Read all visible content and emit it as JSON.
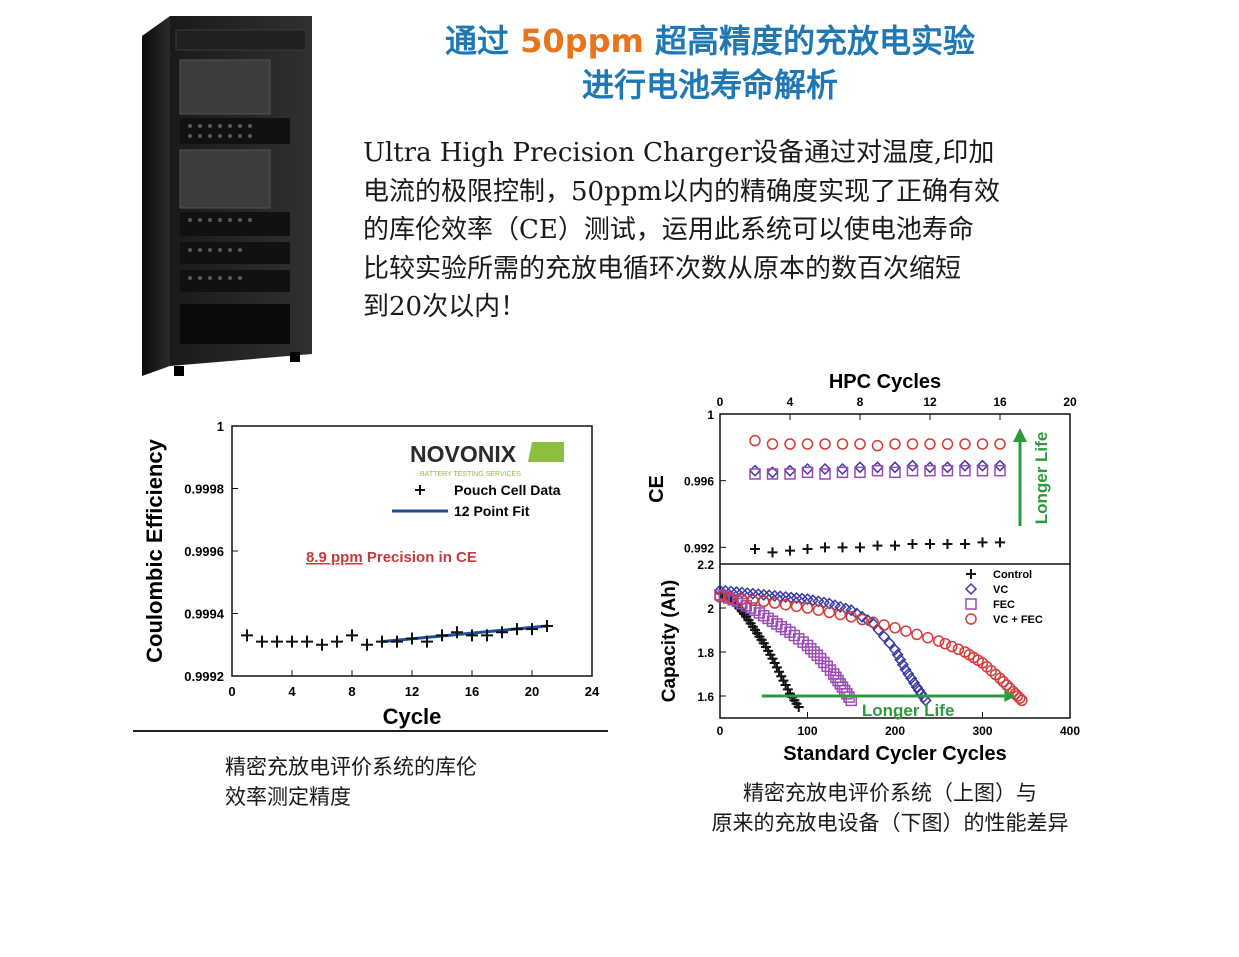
{
  "heading": {
    "line1_prefix": "通过 ",
    "line1_highlight": "50ppm",
    "line1_suffix": " 超高精度的充放电实验",
    "line2": "进行电池寿命解析"
  },
  "intro": {
    "lines": [
      "Ultra High Precision Charger设备通过对温度,印加",
      "电流的极限控制，50ppm以内的精确度实现了正确有效",
      "的库伦效率（CE）测试，运用此系统可以使电池寿命",
      "比较实验所需的充放电循环次数从原本的数百次缩短",
      "到20次以内！"
    ]
  },
  "captions": {
    "left": [
      "精密充放电评价系统的库伦",
      "效率测定精度"
    ],
    "right": [
      "精密充放电评价系统（上图）与",
      "原来的充放电设备（下图）的性能差异"
    ]
  },
  "colors": {
    "title_blue": "#1f78b4",
    "highlight_orange": "#e8741c",
    "fit_line": "#1f4e9c",
    "fec_purple": "#9b4bb5",
    "vc_blue": "#3a3aa8",
    "vcfec_red": "#d63a3a",
    "arrow_green": "#2e9a3e"
  },
  "chart_data": [
    {
      "type": "scatter",
      "xlabel": "Cycle",
      "ylabel": "Coulombic Efficiency",
      "xlim": [
        0,
        24
      ],
      "ylim": [
        0.9992,
        1
      ],
      "xticks": [
        "0",
        "4",
        "8",
        "12",
        "16",
        "20",
        "24"
      ],
      "yticks": [
        "0.9992",
        "0.9994",
        "0.9996",
        "0.9998",
        "1"
      ],
      "logo": "NOVONIX",
      "logo_sub": "BATTERY TESTING SERVICES",
      "annotation": {
        "value": "8.9 ppm",
        "text": " Precision in CE"
      },
      "legend": [
        {
          "name": "Pouch Cell Data",
          "marker": "+"
        },
        {
          "name": "12 Point Fit",
          "marker": "line"
        }
      ],
      "series": [
        {
          "name": "Pouch Cell Data",
          "x": [
            1,
            2,
            3,
            4,
            5,
            6,
            7,
            8,
            9,
            10,
            11,
            12,
            13,
            14,
            15,
            16,
            17,
            18,
            19,
            20,
            21
          ],
          "y": [
            0.99933,
            0.99931,
            0.99931,
            0.99931,
            0.99931,
            0.9993,
            0.99931,
            0.99933,
            0.9993,
            0.99931,
            0.99931,
            0.99932,
            0.99931,
            0.99933,
            0.99934,
            0.99933,
            0.99933,
            0.99934,
            0.99935,
            0.99935,
            0.99936
          ]
        },
        {
          "name": "12 Point Fit",
          "x": [
            10,
            21
          ],
          "y": [
            0.99931,
            0.99936
          ]
        }
      ]
    },
    {
      "type": "scatter",
      "title": "HPC Cycles",
      "xlabel": "",
      "ylabel": "CE",
      "xlim": [
        0,
        20
      ],
      "ylim": [
        0.991,
        1
      ],
      "xticks": [
        "0",
        "4",
        "8",
        "12",
        "16",
        "20"
      ],
      "yticks": [
        "0.992",
        "0.996",
        "1"
      ],
      "annotation": "Longer Life",
      "series": [
        {
          "name": "Control",
          "marker": "+",
          "x": [
            2,
            3,
            4,
            5,
            6,
            7,
            8,
            9,
            10,
            11,
            12,
            13,
            14,
            15,
            16
          ],
          "y": [
            0.9919,
            0.9917,
            0.9918,
            0.9919,
            0.992,
            0.992,
            0.992,
            0.9921,
            0.9921,
            0.9922,
            0.9922,
            0.9922,
            0.9922,
            0.9923,
            0.9923
          ]
        },
        {
          "name": "VC",
          "marker": "diamond",
          "x": [
            2,
            3,
            4,
            5,
            6,
            7,
            8,
            9,
            10,
            11,
            12,
            13,
            14,
            15,
            16
          ],
          "y": [
            0.9966,
            0.9965,
            0.9966,
            0.9967,
            0.9967,
            0.9967,
            0.9968,
            0.9968,
            0.9968,
            0.9969,
            0.9968,
            0.9968,
            0.9969,
            0.9969,
            0.9969
          ]
        },
        {
          "name": "FEC",
          "marker": "square",
          "x": [
            2,
            3,
            4,
            5,
            6,
            7,
            8,
            9,
            10,
            11,
            12,
            13,
            14,
            15,
            16
          ],
          "y": [
            0.9964,
            0.9964,
            0.9964,
            0.9965,
            0.9964,
            0.9965,
            0.9965,
            0.9966,
            0.9965,
            0.9966,
            0.9966,
            0.9966,
            0.9966,
            0.9966,
            0.9966
          ]
        },
        {
          "name": "VC + FEC",
          "marker": "circle",
          "x": [
            2,
            3,
            4,
            5,
            6,
            7,
            8,
            9,
            10,
            11,
            12,
            13,
            14,
            15,
            16
          ],
          "y": [
            0.9984,
            0.9982,
            0.9982,
            0.9982,
            0.9982,
            0.9982,
            0.9982,
            0.9981,
            0.9982,
            0.9982,
            0.9982,
            0.9982,
            0.9982,
            0.9982,
            0.9982
          ]
        }
      ]
    },
    {
      "type": "scatter",
      "xlabel": "Standard Cycler Cycles",
      "ylabel": "Capacity (Ah)",
      "xlim": [
        0,
        400
      ],
      "ylim": [
        1.5,
        2.2
      ],
      "xticks": [
        "0",
        "100",
        "200",
        "300",
        "400"
      ],
      "yticks": [
        "1.6",
        "1.8",
        "2",
        "2.2"
      ],
      "annotation": "Longer Life",
      "legend": [
        {
          "name": "Control",
          "marker": "+"
        },
        {
          "name": "VC",
          "marker": "diamond"
        },
        {
          "name": "FEC",
          "marker": "square"
        },
        {
          "name": "VC + FEC",
          "marker": "circle"
        }
      ],
      "series": [
        {
          "name": "Control",
          "x": [
            0,
            10,
            20,
            30,
            40,
            50,
            60,
            70,
            80,
            90
          ],
          "y": [
            2.07,
            2.05,
            2.01,
            1.96,
            1.9,
            1.84,
            1.77,
            1.69,
            1.61,
            1.55
          ]
        },
        {
          "name": "VC",
          "x": [
            0,
            25,
            50,
            75,
            100,
            125,
            150,
            175,
            200,
            212,
            225,
            235
          ],
          "y": [
            2.08,
            2.07,
            2.06,
            2.05,
            2.04,
            2.02,
            1.99,
            1.93,
            1.81,
            1.72,
            1.64,
            1.58
          ]
        },
        {
          "name": "FEC",
          "x": [
            0,
            20,
            40,
            60,
            80,
            100,
            115,
            130,
            140,
            150
          ],
          "y": [
            2.06,
            2.03,
            1.99,
            1.94,
            1.89,
            1.83,
            1.77,
            1.7,
            1.64,
            1.58
          ]
        },
        {
          "name": "VC + FEC",
          "x": [
            0,
            50,
            100,
            150,
            200,
            250,
            280,
            300,
            320,
            335,
            345
          ],
          "y": [
            2.05,
            2.03,
            2.0,
            1.96,
            1.91,
            1.85,
            1.8,
            1.75,
            1.68,
            1.62,
            1.58
          ]
        }
      ]
    }
  ]
}
